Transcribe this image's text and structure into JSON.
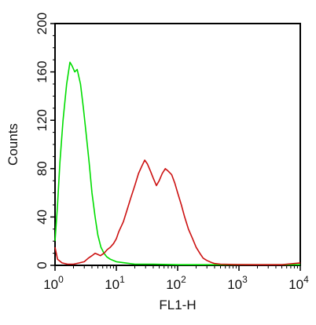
{
  "chart_data": {
    "type": "line",
    "title": "",
    "xlabel": "FL1-H",
    "ylabel": "Counts",
    "x_scale": "log",
    "xlim": [
      1,
      10000
    ],
    "ylim": [
      0,
      200
    ],
    "x_ticks": [
      {
        "base": "10",
        "exp": "0",
        "value": 1
      },
      {
        "base": "10",
        "exp": "1",
        "value": 10
      },
      {
        "base": "10",
        "exp": "2",
        "value": 100
      },
      {
        "base": "10",
        "exp": "3",
        "value": 1000
      },
      {
        "base": "10",
        "exp": "4",
        "value": 10000
      }
    ],
    "y_ticks": [
      "0",
      "40",
      "80",
      "120",
      "160",
      "200"
    ],
    "grid": false,
    "series": [
      {
        "color": "#00dd00",
        "points": [
          [
            1.0,
            20
          ],
          [
            1.1,
            50
          ],
          [
            1.2,
            85
          ],
          [
            1.35,
            120
          ],
          [
            1.55,
            150
          ],
          [
            1.75,
            168
          ],
          [
            1.9,
            165
          ],
          [
            2.1,
            160
          ],
          [
            2.3,
            162
          ],
          [
            2.6,
            150
          ],
          [
            2.9,
            130
          ],
          [
            3.2,
            110
          ],
          [
            3.6,
            85
          ],
          [
            4.0,
            60
          ],
          [
            4.5,
            40
          ],
          [
            5.0,
            25
          ],
          [
            5.6,
            15
          ],
          [
            6.3,
            10
          ],
          [
            7.0,
            7
          ],
          [
            8.0,
            5
          ],
          [
            10,
            3
          ],
          [
            14,
            2
          ],
          [
            20,
            1
          ],
          [
            40,
            1
          ],
          [
            100,
            0.5
          ],
          [
            300,
            0.5
          ],
          [
            1000,
            0.5
          ],
          [
            10000,
            0.5
          ]
        ]
      },
      {
        "color": "#cc1111",
        "points": [
          [
            1.0,
            15
          ],
          [
            1.1,
            5
          ],
          [
            1.3,
            2
          ],
          [
            1.6,
            1
          ],
          [
            2.0,
            1
          ],
          [
            2.5,
            2
          ],
          [
            3.0,
            3
          ],
          [
            3.5,
            6
          ],
          [
            4.0,
            8
          ],
          [
            4.5,
            10
          ],
          [
            5.0,
            9
          ],
          [
            5.5,
            8
          ],
          [
            6.3,
            10
          ],
          [
            7.1,
            13
          ],
          [
            8.0,
            15
          ],
          [
            9.0,
            18
          ],
          [
            10,
            22
          ],
          [
            11,
            28
          ],
          [
            13,
            36
          ],
          [
            15,
            46
          ],
          [
            17,
            55
          ],
          [
            20,
            66
          ],
          [
            23,
            76
          ],
          [
            26,
            82
          ],
          [
            29,
            87
          ],
          [
            32,
            84
          ],
          [
            36,
            78
          ],
          [
            40,
            72
          ],
          [
            45,
            66
          ],
          [
            50,
            70
          ],
          [
            56,
            76
          ],
          [
            63,
            80
          ],
          [
            70,
            78
          ],
          [
            80,
            75
          ],
          [
            90,
            68
          ],
          [
            100,
            60
          ],
          [
            115,
            50
          ],
          [
            130,
            40
          ],
          [
            150,
            30
          ],
          [
            175,
            22
          ],
          [
            200,
            15
          ],
          [
            230,
            10
          ],
          [
            260,
            6
          ],
          [
            300,
            4
          ],
          [
            350,
            2.5
          ],
          [
            400,
            1.5
          ],
          [
            500,
            1
          ],
          [
            700,
            0.8
          ],
          [
            1000,
            0.6
          ],
          [
            2000,
            0.5
          ],
          [
            5000,
            0.5
          ],
          [
            10000,
            2
          ]
        ]
      }
    ]
  }
}
